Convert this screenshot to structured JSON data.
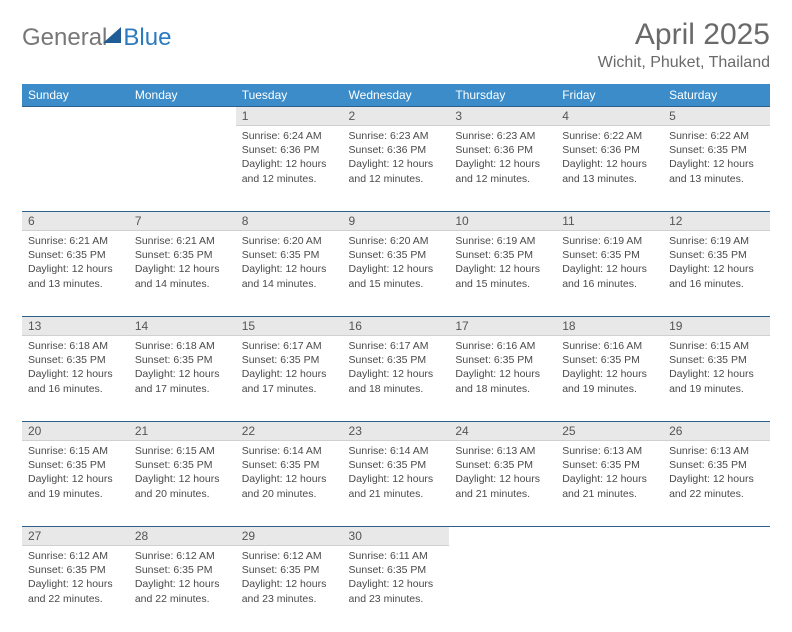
{
  "logo": {
    "text1": "General",
    "text2": "Blue"
  },
  "title": "April 2025",
  "location": "Wichit, Phuket, Thailand",
  "header_bg": "#3b8cc9",
  "header_fg": "#ffffff",
  "daynum_bg": "#e8e8e8",
  "rule_color": "#2e5f8a",
  "text_color": "#4a4a4a",
  "columns": [
    "Sunday",
    "Monday",
    "Tuesday",
    "Wednesday",
    "Thursday",
    "Friday",
    "Saturday"
  ],
  "weeks": [
    [
      null,
      null,
      {
        "n": "1",
        "sr": "6:24 AM",
        "ss": "6:36 PM",
        "dl": "12 hours and 12 minutes."
      },
      {
        "n": "2",
        "sr": "6:23 AM",
        "ss": "6:36 PM",
        "dl": "12 hours and 12 minutes."
      },
      {
        "n": "3",
        "sr": "6:23 AM",
        "ss": "6:36 PM",
        "dl": "12 hours and 12 minutes."
      },
      {
        "n": "4",
        "sr": "6:22 AM",
        "ss": "6:36 PM",
        "dl": "12 hours and 13 minutes."
      },
      {
        "n": "5",
        "sr": "6:22 AM",
        "ss": "6:35 PM",
        "dl": "12 hours and 13 minutes."
      }
    ],
    [
      {
        "n": "6",
        "sr": "6:21 AM",
        "ss": "6:35 PM",
        "dl": "12 hours and 13 minutes."
      },
      {
        "n": "7",
        "sr": "6:21 AM",
        "ss": "6:35 PM",
        "dl": "12 hours and 14 minutes."
      },
      {
        "n": "8",
        "sr": "6:20 AM",
        "ss": "6:35 PM",
        "dl": "12 hours and 14 minutes."
      },
      {
        "n": "9",
        "sr": "6:20 AM",
        "ss": "6:35 PM",
        "dl": "12 hours and 15 minutes."
      },
      {
        "n": "10",
        "sr": "6:19 AM",
        "ss": "6:35 PM",
        "dl": "12 hours and 15 minutes."
      },
      {
        "n": "11",
        "sr": "6:19 AM",
        "ss": "6:35 PM",
        "dl": "12 hours and 16 minutes."
      },
      {
        "n": "12",
        "sr": "6:19 AM",
        "ss": "6:35 PM",
        "dl": "12 hours and 16 minutes."
      }
    ],
    [
      {
        "n": "13",
        "sr": "6:18 AM",
        "ss": "6:35 PM",
        "dl": "12 hours and 16 minutes."
      },
      {
        "n": "14",
        "sr": "6:18 AM",
        "ss": "6:35 PM",
        "dl": "12 hours and 17 minutes."
      },
      {
        "n": "15",
        "sr": "6:17 AM",
        "ss": "6:35 PM",
        "dl": "12 hours and 17 minutes."
      },
      {
        "n": "16",
        "sr": "6:17 AM",
        "ss": "6:35 PM",
        "dl": "12 hours and 18 minutes."
      },
      {
        "n": "17",
        "sr": "6:16 AM",
        "ss": "6:35 PM",
        "dl": "12 hours and 18 minutes."
      },
      {
        "n": "18",
        "sr": "6:16 AM",
        "ss": "6:35 PM",
        "dl": "12 hours and 19 minutes."
      },
      {
        "n": "19",
        "sr": "6:15 AM",
        "ss": "6:35 PM",
        "dl": "12 hours and 19 minutes."
      }
    ],
    [
      {
        "n": "20",
        "sr": "6:15 AM",
        "ss": "6:35 PM",
        "dl": "12 hours and 19 minutes."
      },
      {
        "n": "21",
        "sr": "6:15 AM",
        "ss": "6:35 PM",
        "dl": "12 hours and 20 minutes."
      },
      {
        "n": "22",
        "sr": "6:14 AM",
        "ss": "6:35 PM",
        "dl": "12 hours and 20 minutes."
      },
      {
        "n": "23",
        "sr": "6:14 AM",
        "ss": "6:35 PM",
        "dl": "12 hours and 21 minutes."
      },
      {
        "n": "24",
        "sr": "6:13 AM",
        "ss": "6:35 PM",
        "dl": "12 hours and 21 minutes."
      },
      {
        "n": "25",
        "sr": "6:13 AM",
        "ss": "6:35 PM",
        "dl": "12 hours and 21 minutes."
      },
      {
        "n": "26",
        "sr": "6:13 AM",
        "ss": "6:35 PM",
        "dl": "12 hours and 22 minutes."
      }
    ],
    [
      {
        "n": "27",
        "sr": "6:12 AM",
        "ss": "6:35 PM",
        "dl": "12 hours and 22 minutes."
      },
      {
        "n": "28",
        "sr": "6:12 AM",
        "ss": "6:35 PM",
        "dl": "12 hours and 22 minutes."
      },
      {
        "n": "29",
        "sr": "6:12 AM",
        "ss": "6:35 PM",
        "dl": "12 hours and 23 minutes."
      },
      {
        "n": "30",
        "sr": "6:11 AM",
        "ss": "6:35 PM",
        "dl": "12 hours and 23 minutes."
      },
      null,
      null,
      null
    ]
  ],
  "labels": {
    "sunrise": "Sunrise:",
    "sunset": "Sunset:",
    "daylight": "Daylight:"
  }
}
